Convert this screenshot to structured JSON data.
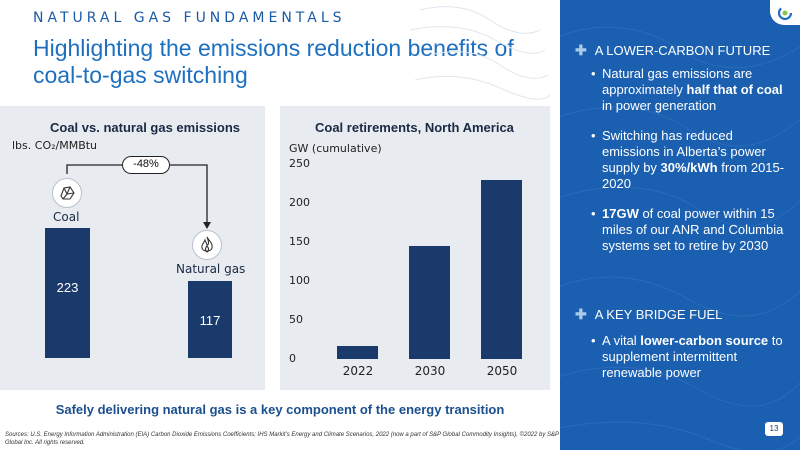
{
  "header": {
    "eyebrow": "NATURAL GAS FUNDAMENTALS",
    "title": "Highlighting the emissions reduction benefits of coal-to-gas switching"
  },
  "emissions_chart": {
    "title": "Coal vs. natural gas emissions",
    "unit_label": "lbs. CO₂/MMBtu",
    "change_label": "-48%",
    "coal_label": "Coal",
    "coal_value": "223",
    "gas_label": "Natural gas",
    "gas_value": "117"
  },
  "retirements_chart": {
    "title": "Coal retirements, North America",
    "unit_label": "GW (cumulative)",
    "y_ticks": [
      "250",
      "200",
      "150",
      "100",
      "50",
      "0"
    ],
    "x_ticks": [
      "2022",
      "2030",
      "2050"
    ]
  },
  "chart_data": [
    {
      "type": "bar",
      "title": "Coal vs. natural gas emissions",
      "ylabel": "lbs. CO₂/MMBtu",
      "categories": [
        "Coal",
        "Natural gas"
      ],
      "values": [
        223,
        117
      ],
      "annotation": "-48%"
    },
    {
      "type": "bar",
      "title": "Coal retirements, North America",
      "ylabel": "GW (cumulative)",
      "categories": [
        "2022",
        "2030",
        "2050"
      ],
      "values": [
        17,
        145,
        230
      ],
      "ylim": [
        0,
        250
      ],
      "grid": false
    }
  ],
  "tagline": "Safely delivering natural gas is a key component of the energy transition",
  "sources": "Sources: U.S. Energy Information Administration (EIA) Carbon Dioxide Emissions Coefficients; IHS Markit's Energy and Climate Scenarios, 2022 (now a part of S&P Global Commodity Insights), ©2022 by S&P Global Inc. All rights reserved.",
  "sidebar": {
    "section1": "A LOWER-CARBON FUTURE",
    "bullet1": {
      "pre": "Natural gas emissions are approximately ",
      "bold": "half that of coal",
      "post": " in power generation"
    },
    "bullet2": {
      "pre": "Switching has reduced emissions in Alberta’s power supply by ",
      "bold": "30%/kWh",
      "post": " from 2015-2020"
    },
    "bullet3": {
      "pre": "",
      "bold": "17GW",
      "post": " of coal power within 15 miles of our ANR and Columbia systems set to retire by 2030"
    },
    "section2": "A KEY BRIDGE FUEL",
    "bullet4": {
      "pre": "A vital ",
      "bold": "lower-carbon source",
      "post": " to supplement intermittent renewable power"
    },
    "bullet_dot": "•",
    "plus": "✚"
  },
  "page_number": "13",
  "colors": {
    "accent_blue": "#1d6fc0",
    "navy_bar": "#1a3a6b",
    "sidebar_blue": "#1a5fb0",
    "panel_gray": "#e8ebef"
  },
  "icons": {
    "coal": "coal-lump-icon",
    "gas": "flame-icon",
    "logo": "company-logo-icon"
  }
}
